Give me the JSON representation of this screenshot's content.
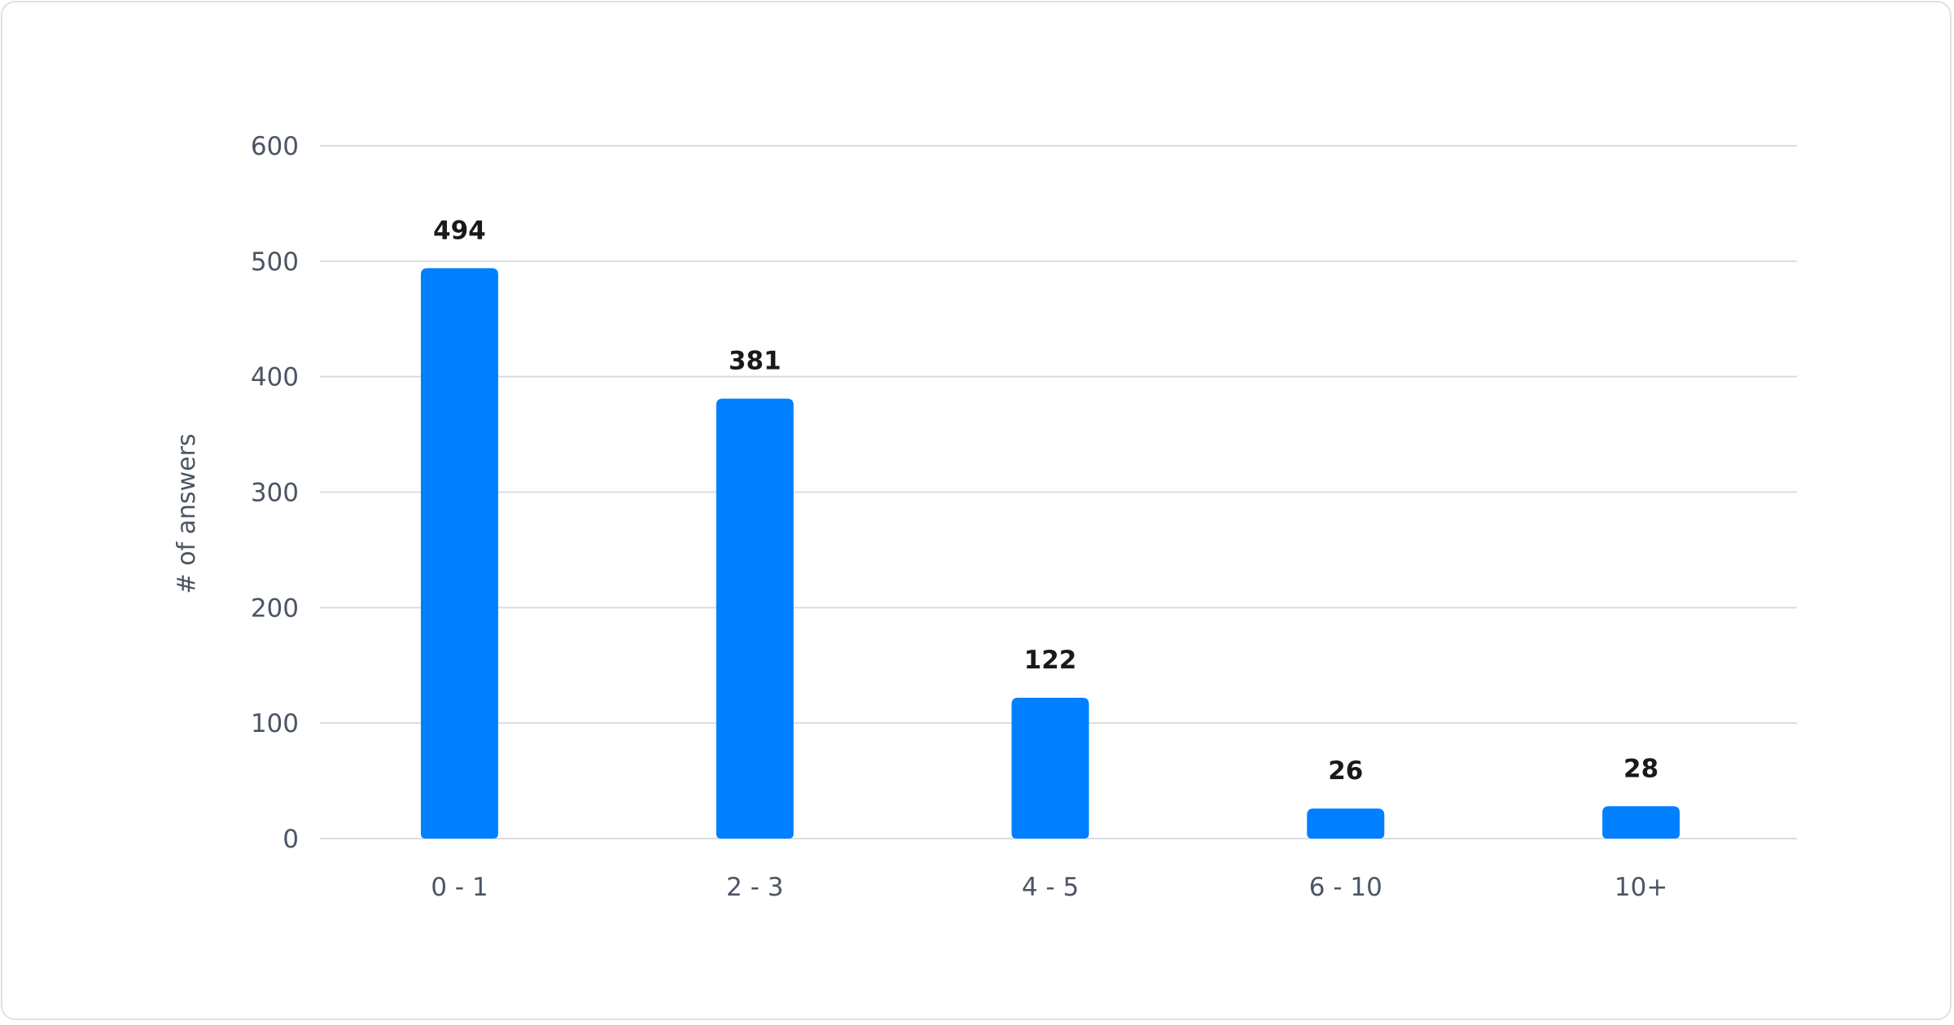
{
  "chart_data": {
    "type": "bar",
    "title": "",
    "xlabel": "",
    "ylabel": "# of answers",
    "categories": [
      "0 - 1",
      "2 - 3",
      "4 - 5",
      "6 - 10",
      "10+"
    ],
    "values": [
      494,
      381,
      122,
      26,
      28
    ],
    "data_labels": [
      "494",
      "381",
      "122",
      "26",
      "28"
    ],
    "ylim": [
      0,
      600
    ],
    "yticks": [
      0,
      100,
      200,
      300,
      400,
      500,
      600
    ],
    "grid": true,
    "legend": "none",
    "colors": {
      "bar": "#0080FF",
      "grid": "#d9dce1",
      "tick_text": "#4b5563",
      "value_text": "#1a1a1a"
    }
  }
}
